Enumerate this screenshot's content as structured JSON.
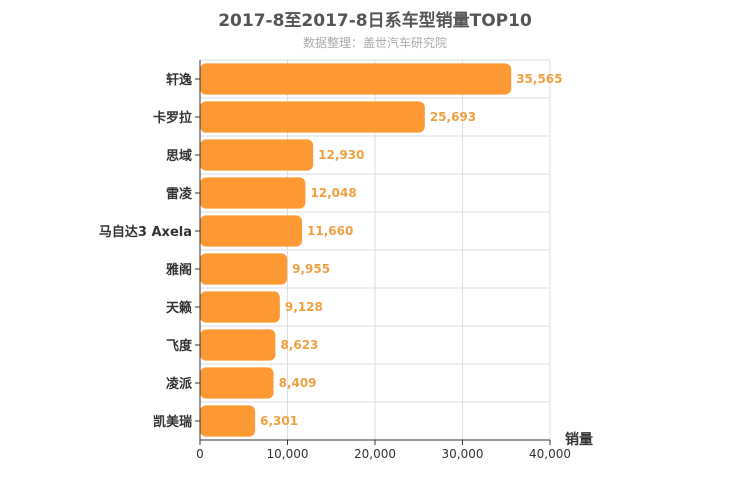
{
  "chart_data": {
    "type": "bar",
    "orientation": "horizontal",
    "title": "2017-8至2017-8日系车型销量TOP10",
    "subtitle": "数据整理：盖世汽车研究院",
    "xlabel": "销量",
    "ylabel": "",
    "xlim": [
      0,
      40000
    ],
    "x_ticks": [
      "0",
      "10,000",
      "20,000",
      "30,000",
      "40,000"
    ],
    "x_tick_values": [
      0,
      10000,
      20000,
      30000,
      40000
    ],
    "categories": [
      "轩逸",
      "卡罗拉",
      "思域",
      "雷凌",
      "马自达3 Axela",
      "雅阁",
      "天籁",
      "飞度",
      "凌派",
      "凯美瑞"
    ],
    "values": [
      35565,
      25693,
      12930,
      12048,
      11660,
      9955,
      9128,
      8623,
      8409,
      6301
    ],
    "value_labels": [
      "35,565",
      "25,693",
      "12,930",
      "12,048",
      "11,660",
      "9,955",
      "9,128",
      "8,623",
      "8,409",
      "6,301"
    ],
    "grid": true,
    "legend": "none",
    "bar_color": "#ff9933",
    "label_color": "#f0a040"
  }
}
